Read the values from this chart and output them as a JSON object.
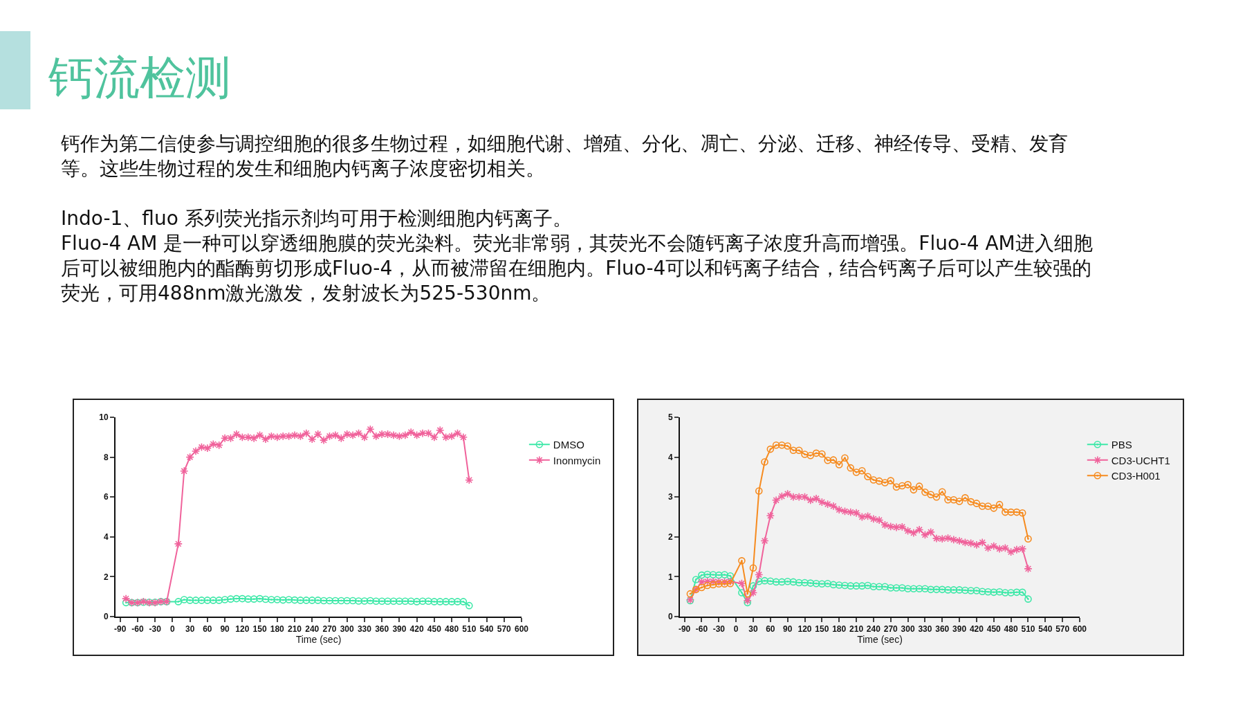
{
  "chart_data": [
    {
      "type": "line",
      "title": "钙流检测",
      "annotations": [
        "钙作为第二信使参与调控细胞的很多生物过程，如细胞代谢、增殖、分化、凋亡、分泌、迁移、神经传导、受精、发育等。这些生物过程的发生和细胞内钙离子浓度密切相关。",
        "Indo-1、fluo 系列荧光指示剂均可用于检测细胞内钙离子。",
        "Fluo-4 AM 是一种可以穿透细胞膜的荧光染料。荧光非常弱，其荧光不会随钙离子浓度升高而增强。Fluo-4 AM进入细胞后可以被细胞内的酯酶剪切形成Fluo-4，从而被滞留在细胞内。Fluo-4可以和钙离子结合，结合钙离子后可以产生较强的荧光，可用488nm激光激发，发射波长为525-530nm。"
      ],
      "xlabel": "Time (sec)",
      "x": [
        -80,
        -70,
        -60,
        -50,
        -40,
        -30,
        -20,
        -10,
        10,
        20,
        30,
        40,
        50,
        60,
        70,
        80,
        90,
        100,
        110,
        120,
        130,
        140,
        150,
        160,
        170,
        180,
        190,
        200,
        210,
        220,
        230,
        240,
        250,
        260,
        270,
        280,
        290,
        300,
        310,
        320,
        330,
        340,
        350,
        360,
        370,
        380,
        390,
        400,
        410,
        420,
        430,
        440,
        450,
        460,
        470,
        480,
        490,
        500,
        510
      ],
      "xlim": [
        -98,
        600
      ],
      "xticks": [
        -90,
        -60,
        -30,
        0,
        30,
        60,
        90,
        120,
        150,
        180,
        210,
        240,
        270,
        300,
        330,
        360,
        390,
        420,
        450,
        480,
        510,
        540,
        570,
        600
      ],
      "ylim": [
        0,
        10
      ],
      "yticks": [
        0,
        2,
        4,
        6,
        8,
        10
      ],
      "grid": false,
      "legend": "right",
      "line_style": "solid",
      "series": [
        {
          "name": "DMSO",
          "color": "#3ee8a8",
          "marker": "circle",
          "values": [
            0.7,
            0.7,
            0.7,
            0.72,
            0.72,
            0.72,
            0.75,
            0.75,
            0.75,
            0.85,
            0.82,
            0.82,
            0.82,
            0.82,
            0.82,
            0.82,
            0.85,
            0.88,
            0.9,
            0.9,
            0.88,
            0.88,
            0.9,
            0.87,
            0.85,
            0.85,
            0.83,
            0.85,
            0.83,
            0.82,
            0.82,
            0.82,
            0.82,
            0.8,
            0.8,
            0.8,
            0.8,
            0.8,
            0.8,
            0.78,
            0.78,
            0.8,
            0.77,
            0.77,
            0.77,
            0.77,
            0.77,
            0.77,
            0.77,
            0.75,
            0.77,
            0.77,
            0.75,
            0.75,
            0.75,
            0.75,
            0.75,
            0.75,
            0.55
          ]
        },
        {
          "name": "Inonmycin",
          "color": "#f0629b",
          "marker": "cross",
          "values": [
            0.9,
            0.7,
            0.7,
            0.75,
            0.7,
            0.7,
            0.75,
            0.75,
            3.65,
            7.3,
            8.0,
            8.3,
            8.5,
            8.45,
            8.65,
            8.6,
            8.95,
            8.95,
            9.15,
            9.0,
            9.0,
            8.95,
            9.1,
            8.9,
            9.05,
            9.0,
            9.05,
            9.05,
            9.1,
            9.05,
            9.2,
            8.9,
            9.15,
            8.85,
            9.05,
            9.1,
            8.95,
            9.15,
            9.1,
            9.2,
            9.0,
            9.4,
            9.05,
            9.15,
            9.15,
            9.1,
            9.05,
            9.1,
            9.25,
            9.1,
            9.2,
            9.2,
            9.0,
            9.35,
            9.0,
            9.05,
            9.2,
            9.0,
            6.85
          ]
        }
      ]
    },
    {
      "type": "line",
      "xlabel": "Time (sec)",
      "x": [
        -80,
        -70,
        -60,
        -50,
        -40,
        -30,
        -20,
        -10,
        10,
        20,
        30,
        40,
        50,
        60,
        70,
        80,
        90,
        100,
        110,
        120,
        130,
        140,
        150,
        160,
        170,
        180,
        190,
        200,
        210,
        220,
        230,
        240,
        250,
        260,
        270,
        280,
        290,
        300,
        310,
        320,
        330,
        340,
        350,
        360,
        370,
        380,
        390,
        400,
        410,
        420,
        430,
        440,
        450,
        460,
        470,
        480,
        490,
        500,
        510
      ],
      "xlim": [
        -98,
        600
      ],
      "xticks": [
        -90,
        -60,
        -30,
        0,
        30,
        60,
        90,
        120,
        150,
        180,
        210,
        240,
        270,
        300,
        330,
        360,
        390,
        420,
        450,
        480,
        510,
        540,
        570,
        600
      ],
      "ylim": [
        0,
        5
      ],
      "yticks": [
        0,
        1,
        2,
        3,
        4,
        5
      ],
      "grid": false,
      "legend": "right",
      "line_style": "solid",
      "series": [
        {
          "name": "PBS",
          "color": "#3ee8a8",
          "marker": "circle",
          "values": [
            0.4,
            0.93,
            1.04,
            1.06,
            1.05,
            1.04,
            1.05,
            1.02,
            0.6,
            0.35,
            0.77,
            0.88,
            0.9,
            0.89,
            0.87,
            0.87,
            0.88,
            0.87,
            0.85,
            0.85,
            0.84,
            0.83,
            0.82,
            0.83,
            0.8,
            0.79,
            0.78,
            0.77,
            0.77,
            0.77,
            0.78,
            0.75,
            0.75,
            0.75,
            0.72,
            0.72,
            0.72,
            0.7,
            0.7,
            0.7,
            0.7,
            0.68,
            0.68,
            0.68,
            0.67,
            0.67,
            0.67,
            0.66,
            0.65,
            0.65,
            0.63,
            0.62,
            0.61,
            0.62,
            0.6,
            0.6,
            0.61,
            0.61,
            0.44
          ]
        },
        {
          "name": "CD3-UCHT1",
          "color": "#f0629b",
          "marker": "cross",
          "values": [
            0.42,
            0.68,
            0.87,
            0.88,
            0.88,
            0.87,
            0.87,
            0.88,
            0.83,
            0.4,
            0.6,
            1.05,
            1.9,
            2.53,
            2.92,
            3.02,
            3.08,
            3.0,
            3.0,
            3.0,
            2.92,
            2.96,
            2.87,
            2.82,
            2.77,
            2.68,
            2.64,
            2.62,
            2.6,
            2.5,
            2.52,
            2.45,
            2.42,
            2.3,
            2.26,
            2.24,
            2.25,
            2.15,
            2.1,
            2.18,
            2.05,
            2.12,
            1.96,
            1.95,
            1.97,
            1.93,
            1.9,
            1.86,
            1.84,
            1.8,
            1.86,
            1.72,
            1.77,
            1.7,
            1.72,
            1.62,
            1.68,
            1.7,
            1.2
          ]
        },
        {
          "name": "CD3-H001",
          "color": "#f68b1f",
          "marker": "circle",
          "values": [
            0.57,
            0.68,
            0.73,
            0.78,
            0.8,
            0.82,
            0.82,
            0.83,
            1.4,
            0.57,
            1.22,
            3.15,
            3.88,
            4.2,
            4.3,
            4.3,
            4.28,
            4.17,
            4.17,
            4.07,
            4.04,
            4.1,
            4.08,
            3.92,
            3.93,
            3.81,
            3.98,
            3.73,
            3.62,
            3.66,
            3.51,
            3.43,
            3.4,
            3.36,
            3.41,
            3.25,
            3.28,
            3.31,
            3.18,
            3.27,
            3.12,
            3.06,
            3.0,
            3.13,
            2.93,
            2.93,
            2.89,
            2.98,
            2.88,
            2.84,
            2.77,
            2.77,
            2.72,
            2.81,
            2.62,
            2.62,
            2.62,
            2.6,
            1.95
          ]
        }
      ]
    }
  ]
}
